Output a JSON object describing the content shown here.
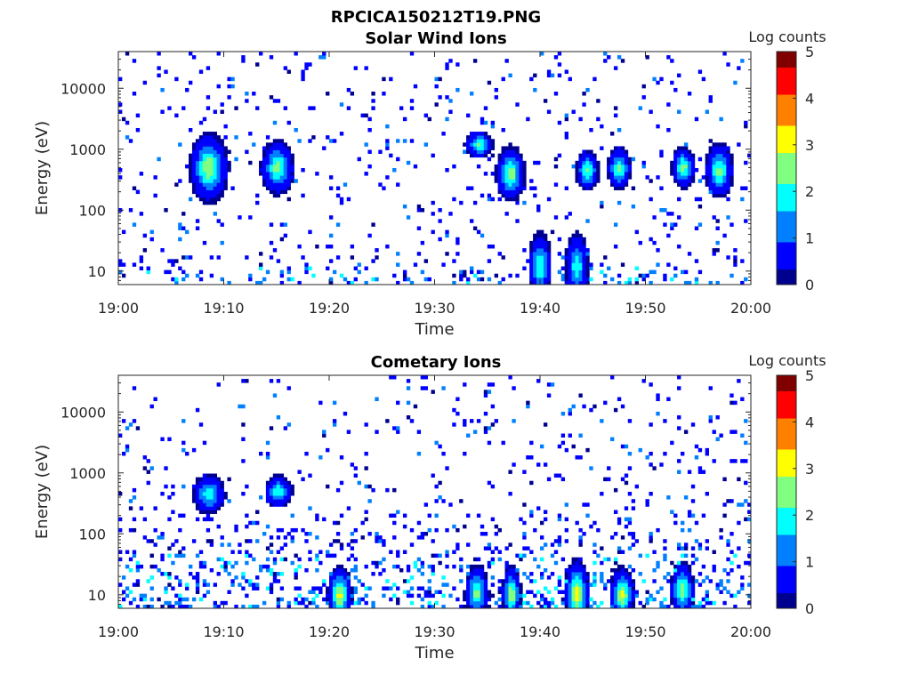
{
  "figure": {
    "title": "RPCICA150212T19.PNG"
  },
  "colormap": [
    "#00008f",
    "#0000ff",
    "#0080ff",
    "#00ffff",
    "#80ff80",
    "#ffff00",
    "#ff8000",
    "#ff0000",
    "#800000"
  ],
  "chart_data": [
    {
      "type": "heatmap",
      "title": "Solar Wind Ions",
      "xlabel": "Time",
      "ylabel": "Energy (eV)",
      "x_ticks": [
        "19:00",
        "19:10",
        "19:20",
        "19:30",
        "19:40",
        "19:50",
        "20:00"
      ],
      "x_range_minutes": [
        0,
        60
      ],
      "y_scale": "log",
      "y_ticks": [
        10,
        100,
        1000,
        10000
      ],
      "y_tick_labels": [
        "10",
        "100",
        "1000",
        "10000"
      ],
      "y_range": [
        6,
        40000
      ],
      "colorbar": {
        "label": "Log counts",
        "ticks": [
          "0",
          "1",
          "2",
          "3",
          "4",
          "5"
        ],
        "range": [
          0,
          5
        ]
      },
      "features": [
        {
          "t": 8.6,
          "e": 500,
          "dt": 0.8,
          "spread": 0.25,
          "peak": 2.7
        },
        {
          "t": 15.1,
          "e": 500,
          "dt": 0.7,
          "spread": 0.2,
          "peak": 2.4
        },
        {
          "t": 34.2,
          "e": 1200,
          "dt": 0.6,
          "spread": 0.1,
          "peak": 2.2
        },
        {
          "t": 37.2,
          "e": 400,
          "dt": 0.6,
          "spread": 0.2,
          "peak": 2.6
        },
        {
          "t": 44.5,
          "e": 450,
          "dt": 0.5,
          "spread": 0.15,
          "peak": 2.3
        },
        {
          "t": 47.5,
          "e": 480,
          "dt": 0.5,
          "spread": 0.15,
          "peak": 2.4
        },
        {
          "t": 53.6,
          "e": 500,
          "dt": 0.5,
          "spread": 0.15,
          "peak": 2.5
        },
        {
          "t": 57.0,
          "e": 450,
          "dt": 0.6,
          "spread": 0.2,
          "peak": 2.4
        },
        {
          "t": 40.0,
          "e": 12,
          "dt": 0.5,
          "spread": 0.25,
          "peak": 2.2
        },
        {
          "t": 43.5,
          "e": 12,
          "dt": 0.5,
          "spread": 0.25,
          "peak": 2.0
        }
      ],
      "seed": 11
    },
    {
      "type": "heatmap",
      "title": "Cometary Ions",
      "xlabel": "Time",
      "ylabel": "Energy (eV)",
      "x_ticks": [
        "19:00",
        "19:10",
        "19:20",
        "19:30",
        "19:40",
        "19:50",
        "20:00"
      ],
      "x_range_minutes": [
        0,
        60
      ],
      "y_scale": "log",
      "y_ticks": [
        10,
        100,
        1000,
        10000
      ],
      "y_tick_labels": [
        "10",
        "100",
        "1000",
        "10000"
      ],
      "y_range": [
        6,
        40000
      ],
      "colorbar": {
        "label": "Log counts",
        "ticks": [
          "0",
          "1",
          "2",
          "3",
          "4",
          "5"
        ],
        "range": [
          0,
          5
        ]
      },
      "features": [
        {
          "t": 8.6,
          "e": 450,
          "dt": 0.7,
          "spread": 0.15,
          "peak": 2.0
        },
        {
          "t": 15.2,
          "e": 500,
          "dt": 0.6,
          "spread": 0.12,
          "peak": 2.0
        },
        {
          "t": 21.0,
          "e": 10,
          "dt": 0.5,
          "spread": 0.2,
          "peak": 3.0
        },
        {
          "t": 37.3,
          "e": 10,
          "dt": 0.4,
          "spread": 0.2,
          "peak": 2.8
        },
        {
          "t": 43.5,
          "e": 10,
          "dt": 0.5,
          "spread": 0.25,
          "peak": 3.1
        },
        {
          "t": 47.8,
          "e": 10,
          "dt": 0.5,
          "spread": 0.2,
          "peak": 2.9
        },
        {
          "t": 53.5,
          "e": 12,
          "dt": 0.5,
          "spread": 0.2,
          "peak": 2.6
        },
        {
          "t": 34.0,
          "e": 11,
          "dt": 0.5,
          "spread": 0.2,
          "peak": 2.4
        }
      ],
      "seed": 29
    }
  ]
}
